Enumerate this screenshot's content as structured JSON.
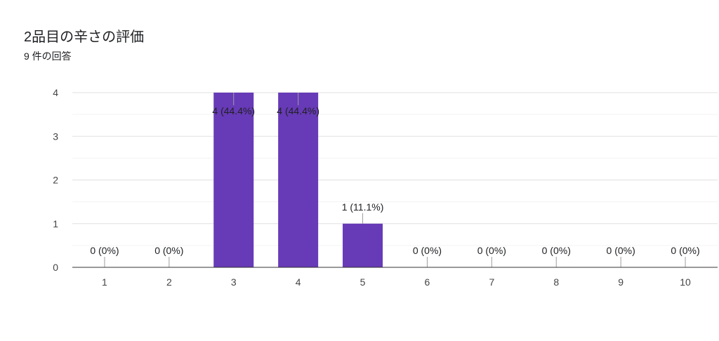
{
  "header": {
    "title": "2品目の辛さの評価",
    "subtitle": "9 件の回答"
  },
  "chart_data": {
    "type": "bar",
    "categories": [
      "1",
      "2",
      "3",
      "4",
      "5",
      "6",
      "7",
      "8",
      "9",
      "10"
    ],
    "values": [
      0,
      0,
      4,
      4,
      1,
      0,
      0,
      0,
      0,
      0
    ],
    "data_labels": [
      "0 (0%)",
      "0 (0%)",
      "4 (44.4%)",
      "4 (44.4%)",
      "1 (11.1%)",
      "0 (0%)",
      "0 (0%)",
      "0 (0%)",
      "0 (0%)",
      "0 (0%)"
    ],
    "ylim": [
      0,
      4
    ],
    "yticks": [
      "0",
      "1",
      "2",
      "3",
      "4"
    ],
    "grid": true,
    "bar_color": "#673ab7"
  }
}
